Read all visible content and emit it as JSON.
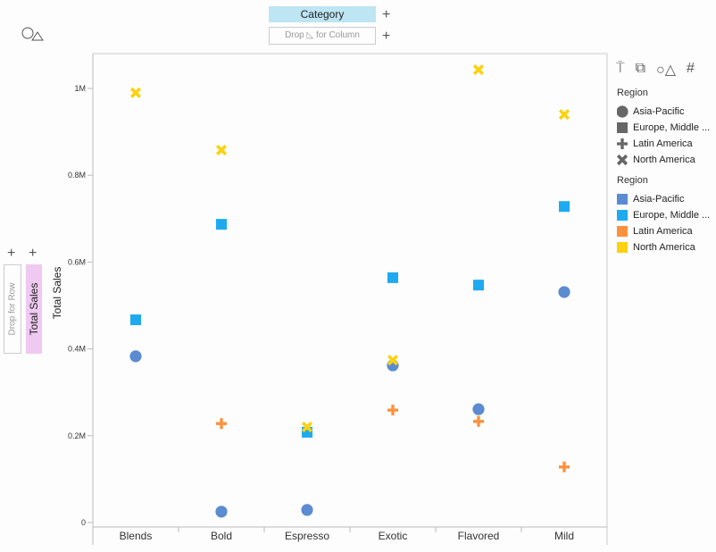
{
  "shelves": {
    "column_field": "Category",
    "column_drop": "Drop",
    "column_drop_suffix": "for Column",
    "row_drop": "Drop for Row",
    "row_field": "Total Sales"
  },
  "toolbar_icons": [
    "paint-roller-icon",
    "copy-icon",
    "shapes-icon",
    "hash-icon"
  ],
  "legends": [
    {
      "title": "Region",
      "type": "shape",
      "items": [
        {
          "label": "Asia-Pacific",
          "shape": "circle"
        },
        {
          "label": "Europe, Middle ...",
          "shape": "square"
        },
        {
          "label": "Latin America",
          "shape": "plus"
        },
        {
          "label": "North America",
          "shape": "x"
        }
      ]
    },
    {
      "title": "Region",
      "type": "color",
      "items": [
        {
          "label": "Asia-Pacific",
          "color": "#5b8bd0"
        },
        {
          "label": "Europe, Middle ...",
          "color": "#1eaaf1"
        },
        {
          "label": "Latin America",
          "color": "#fd913b"
        },
        {
          "label": "North America",
          "color": "#fcd20f"
        }
      ]
    }
  ],
  "chart_data": {
    "type": "scatter",
    "xlabel": "",
    "ylabel": "Total Sales",
    "categories": [
      "Blends",
      "Bold",
      "Espresso",
      "Exotic",
      "Flavored",
      "Mild"
    ],
    "yticks": [
      "0",
      "0.2M",
      "0.4M",
      "0.6M",
      "0.8M",
      "1M"
    ],
    "ylim": [
      0,
      1100000
    ],
    "legend_position": "right",
    "series": [
      {
        "name": "Asia-Pacific",
        "shape": "circle",
        "color": "#5b8bd0",
        "values": [
          383000,
          25000,
          29000,
          362000,
          261000,
          531000
        ]
      },
      {
        "name": "Europe, Middle ...",
        "shape": "square",
        "color": "#1eaaf1",
        "values": [
          467000,
          687000,
          208000,
          564000,
          547000,
          728000
        ]
      },
      {
        "name": "Latin America",
        "shape": "plus",
        "color": "#fd913b",
        "values": [
          null,
          228000,
          null,
          259000,
          233000,
          128000
        ]
      },
      {
        "name": "North America",
        "shape": "x",
        "color": "#fcd20f",
        "values": [
          990000,
          858000,
          220000,
          374000,
          1043000,
          940000
        ]
      }
    ]
  }
}
